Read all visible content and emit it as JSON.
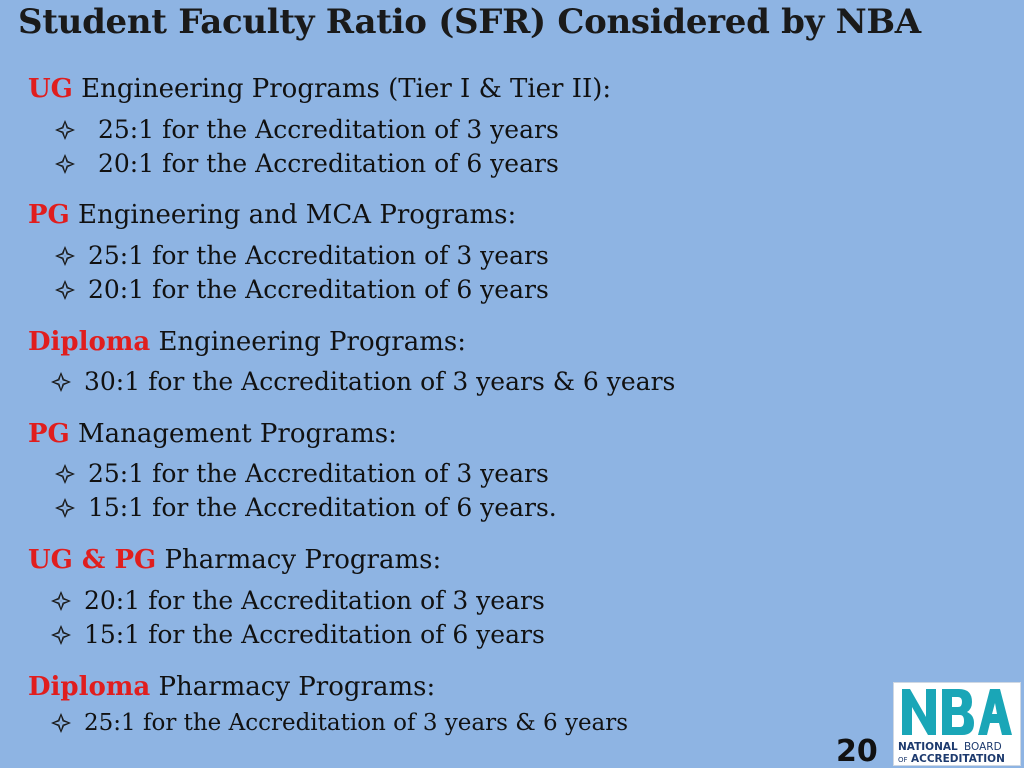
{
  "title": "Student Faculty Ratio (SFR) Considered by NBA",
  "sections": [
    {
      "tag": "UG",
      "text": " Engineering Programs (Tier I & Tier II):",
      "items": [
        "25:1 for the Accreditation of 3 years",
        "20:1 for the Accreditation of 6 years"
      ]
    },
    {
      "tag": "PG",
      "text": " Engineering and MCA Programs:",
      "items": [
        "25:1 for the Accreditation of 3 years",
        "20:1 for the Accreditation of 6 years"
      ]
    },
    {
      "tag": "Diploma",
      "text": " Engineering Programs:",
      "items": [
        "30:1 for the Accreditation of 3 years & 6 years"
      ]
    },
    {
      "tag": "PG",
      "text": " Management Programs:",
      "items": [
        "25:1 for the Accreditation of 3 years",
        "15:1 for the Accreditation of 6 years."
      ]
    },
    {
      "tag": "UG & PG",
      "text": " Pharmacy Programs:",
      "items": [
        "20:1 for the Accreditation of 3 years",
        "15:1 for the Accreditation of 6 years"
      ]
    },
    {
      "tag": "Diploma",
      "text": " Pharmacy Programs:",
      "items": [
        "25:1 for the Accreditation of 3 years & 6 years"
      ]
    }
  ],
  "page_number": "20",
  "logo": {
    "mark": "NBA",
    "line1_a": "NATIONAL",
    "line1_b": "BOARD",
    "line2_a": "OF",
    "line2_b": "ACCREDITATION"
  },
  "colors": {
    "background": "#8eb4e3",
    "tag": "#e01e1e",
    "logo_teal": "#1aa6b7",
    "logo_navy": "#1d3a6e"
  },
  "icons": {
    "bullet": "four-petal-diamond-icon"
  }
}
